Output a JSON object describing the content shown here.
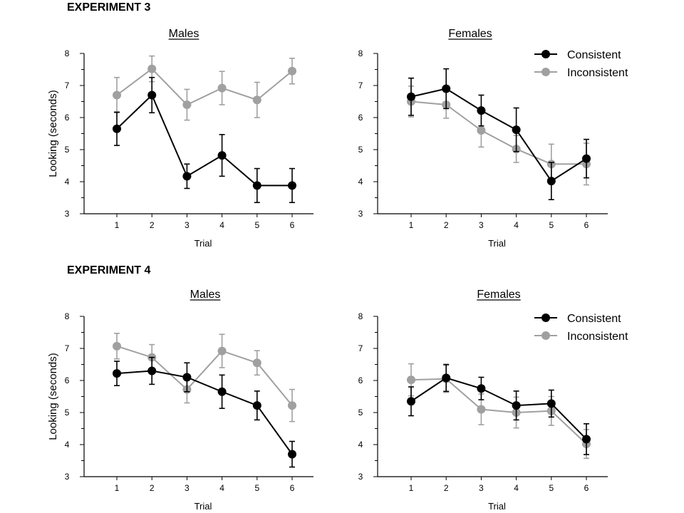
{
  "experiments": [
    {
      "heading": "EXPERIMENT 3"
    },
    {
      "heading": "EXPERIMENT 4"
    }
  ],
  "series_styles": [
    {
      "name": "Consistent",
      "color": "#000000"
    },
    {
      "name": "Inconsistent",
      "color": "#a0a0a0"
    }
  ],
  "chart_data": [
    {
      "type": "line",
      "experiment": "EXPERIMENT 3",
      "title": "Males",
      "xlabel": "Trial",
      "ylabel": "Looking (seconds)",
      "x": [
        1,
        2,
        3,
        4,
        5,
        6
      ],
      "ylim": [
        3,
        8
      ],
      "yticks": [
        3,
        4,
        5,
        6,
        7,
        8
      ],
      "legend": null,
      "grid": false,
      "series": [
        {
          "name": "Consistent",
          "values": [
            5.65,
            6.7,
            4.17,
            4.82,
            3.88,
            3.88
          ],
          "errors": [
            0.52,
            0.55,
            0.38,
            0.65,
            0.53,
            0.53
          ]
        },
        {
          "name": "Inconsistent",
          "values": [
            6.7,
            7.52,
            6.4,
            6.92,
            6.55,
            7.45
          ],
          "errors": [
            0.55,
            0.4,
            0.48,
            0.52,
            0.55,
            0.4
          ]
        }
      ]
    },
    {
      "type": "line",
      "experiment": "EXPERIMENT 3",
      "title": "Females",
      "xlabel": "Trial",
      "ylabel": "",
      "x": [
        1,
        2,
        3,
        4,
        5,
        6
      ],
      "ylim": [
        3,
        8
      ],
      "yticks": [
        3,
        4,
        5,
        6,
        7,
        8
      ],
      "legend": "top-right",
      "grid": false,
      "series": [
        {
          "name": "Consistent",
          "values": [
            6.65,
            6.9,
            6.22,
            5.62,
            4.02,
            4.72
          ],
          "errors": [
            0.58,
            0.62,
            0.48,
            0.68,
            0.58,
            0.6
          ]
        },
        {
          "name": "Inconsistent",
          "values": [
            6.5,
            6.4,
            5.6,
            5.02,
            4.55,
            4.55
          ],
          "errors": [
            0.48,
            0.42,
            0.52,
            0.42,
            0.62,
            0.65
          ]
        }
      ]
    },
    {
      "type": "line",
      "experiment": "EXPERIMENT 4",
      "title": "Males",
      "xlabel": "Trial",
      "ylabel": "Looking (seconds)",
      "x": [
        1,
        2,
        3,
        4,
        5,
        6
      ],
      "ylim": [
        3,
        8
      ],
      "yticks": [
        3,
        4,
        5,
        6,
        7,
        8
      ],
      "legend": null,
      "grid": false,
      "series": [
        {
          "name": "Consistent",
          "values": [
            6.22,
            6.3,
            6.1,
            5.65,
            5.22,
            3.7
          ],
          "errors": [
            0.38,
            0.42,
            0.45,
            0.52,
            0.45,
            0.4
          ]
        },
        {
          "name": "Inconsistent",
          "values": [
            7.07,
            6.72,
            5.72,
            6.92,
            6.55,
            5.22
          ],
          "errors": [
            0.4,
            0.4,
            0.42,
            0.52,
            0.38,
            0.5
          ]
        }
      ]
    },
    {
      "type": "line",
      "experiment": "EXPERIMENT 4",
      "title": "Females",
      "xlabel": "Trial",
      "ylabel": "",
      "x": [
        1,
        2,
        3,
        4,
        5,
        6
      ],
      "ylim": [
        3,
        8
      ],
      "yticks": [
        3,
        4,
        5,
        6,
        7,
        8
      ],
      "legend": "top-right",
      "grid": false,
      "series": [
        {
          "name": "Consistent",
          "values": [
            5.35,
            6.08,
            5.75,
            5.22,
            5.28,
            4.17
          ],
          "errors": [
            0.45,
            0.42,
            0.35,
            0.45,
            0.42,
            0.48
          ]
        },
        {
          "name": "Inconsistent",
          "values": [
            6.02,
            6.05,
            5.1,
            5.0,
            5.05,
            4.02
          ],
          "errors": [
            0.5,
            0.42,
            0.48,
            0.48,
            0.45,
            0.45
          ]
        }
      ]
    }
  ]
}
